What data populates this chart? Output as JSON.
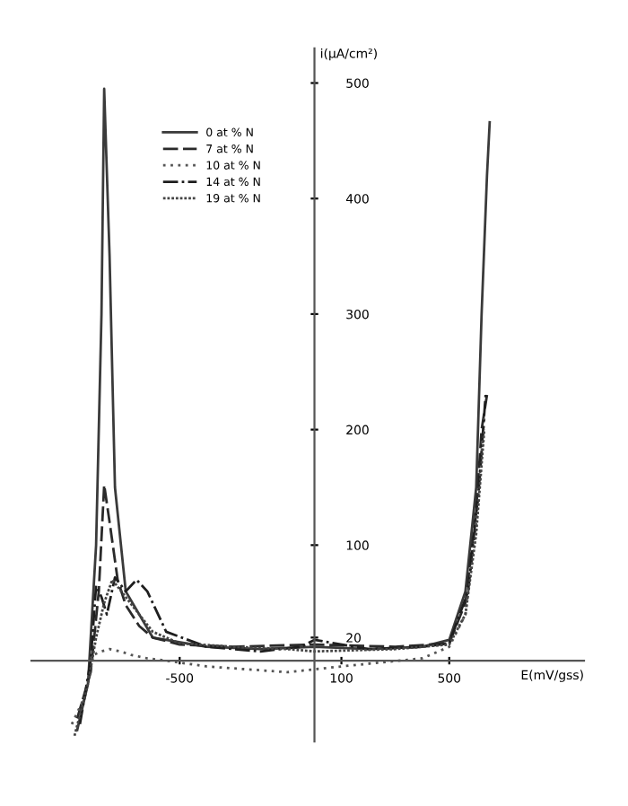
{
  "chart_data": {
    "type": "line",
    "xlabel": "E(mV/gss)",
    "ylabel": "i(µA/cm²)",
    "xlim": [
      -1050,
      1000
    ],
    "ylim": [
      -70,
      530
    ],
    "xticks": [
      -500,
      100,
      500
    ],
    "yticks": [
      20,
      100,
      200,
      300,
      400,
      500
    ],
    "grid": false,
    "legend": "top left",
    "marker": "none",
    "series": [
      {
        "name": "0 at % N",
        "color": "#3a3a3a",
        "line_style": "solid",
        "x": [
          -880,
          -840,
          -810,
          -790,
          -780,
          -760,
          -740,
          -700,
          -600,
          -400,
          -200,
          0,
          200,
          400,
          500,
          560,
          600,
          620,
          640,
          650
        ],
        "values": [
          -60,
          -20,
          100,
          300,
          495,
          350,
          150,
          60,
          20,
          12,
          10,
          12,
          10,
          12,
          18,
          60,
          150,
          300,
          420,
          466
        ]
      },
      {
        "name": "7 at % N",
        "color": "#2a2a2a",
        "line_style": "dashed",
        "x": [
          -880,
          -830,
          -800,
          -780,
          -760,
          -730,
          -700,
          -650,
          -600,
          -500,
          -300,
          0,
          300,
          500,
          560,
          600,
          620,
          640
        ],
        "values": [
          -50,
          -10,
          60,
          152,
          120,
          70,
          48,
          30,
          20,
          14,
          12,
          14,
          12,
          15,
          50,
          130,
          200,
          230
        ]
      },
      {
        "name": "10 at % N",
        "color": "#555555",
        "line_style": "dotted",
        "x": [
          -900,
          -850,
          -820,
          -790,
          -760,
          -720,
          -680,
          -620,
          -550,
          -400,
          -100,
          100,
          400,
          500,
          560,
          600,
          630
        ],
        "values": [
          -55,
          -30,
          5,
          8,
          10,
          8,
          5,
          2,
          0,
          -5,
          -10,
          -5,
          2,
          12,
          40,
          120,
          210
        ]
      },
      {
        "name": "14 at % N",
        "color": "#1e1e1e",
        "line_style": "dashdot",
        "x": [
          -870,
          -830,
          -810,
          -790,
          -770,
          -740,
          -700,
          -660,
          -620,
          -550,
          -400,
          -200,
          -50,
          0,
          200,
          400,
          500,
          570,
          610,
          635
        ],
        "values": [
          -55,
          0,
          65,
          55,
          40,
          72,
          60,
          70,
          60,
          25,
          12,
          8,
          12,
          18,
          10,
          12,
          15,
          60,
          150,
          230
        ]
      },
      {
        "name": "19 at % N",
        "color": "#444444",
        "line_style": "densedot",
        "x": [
          -890,
          -840,
          -810,
          -780,
          -750,
          -700,
          -650,
          -600,
          -500,
          -300,
          -100,
          0,
          300,
          500,
          560,
          600,
          630
        ],
        "values": [
          -65,
          -20,
          20,
          50,
          70,
          55,
          40,
          25,
          15,
          12,
          10,
          8,
          10,
          14,
          40,
          110,
          200
        ]
      }
    ]
  }
}
